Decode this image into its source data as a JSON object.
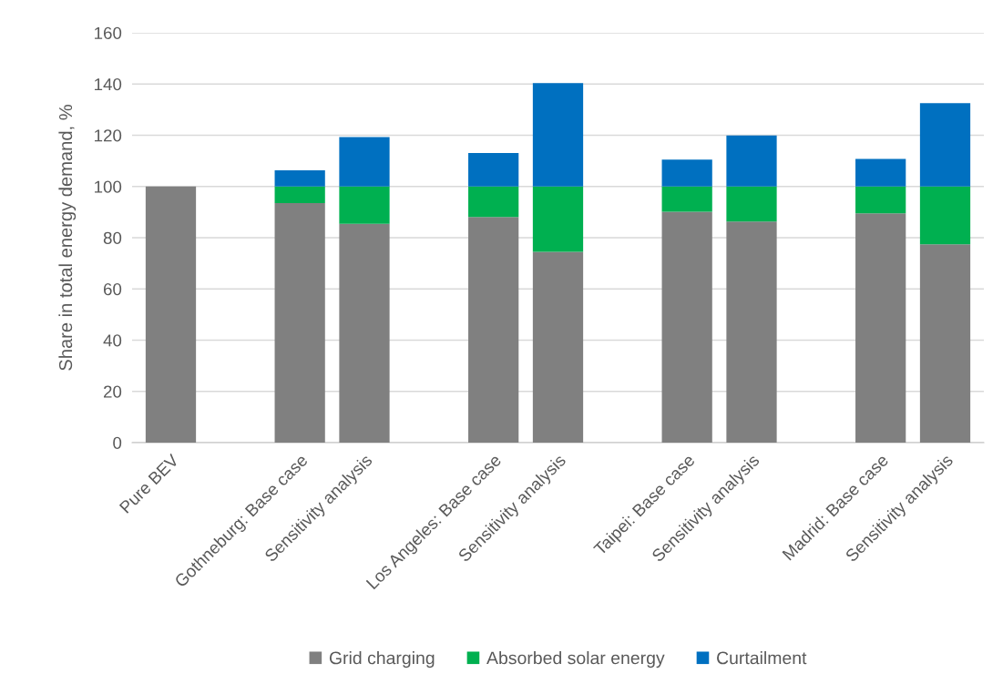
{
  "chart_data": {
    "type": "bar",
    "stacked": true,
    "ylabel": "Share in total energy demand, %",
    "categories": [
      "Pure BEV",
      null,
      "Gothneburg: Base case",
      "Sensitivity analysis",
      null,
      "Los Angeles: Base case",
      "Sensitivity analysis",
      null,
      "Taipei: Base case",
      "Sensitivity analysis",
      null,
      "Madrid: Base case",
      "Sensitivity analysis"
    ],
    "series": [
      {
        "name": "Grid charging",
        "color": "#808080",
        "values": [
          100,
          null,
          93.5,
          85.4,
          null,
          88.1,
          74.5,
          null,
          90.1,
          86.3,
          null,
          89.5,
          77.4
        ]
      },
      {
        "name": "Absorbed solar energy",
        "color": "#00b050",
        "values": [
          null,
          null,
          6.5,
          14.6,
          null,
          11.9,
          25.5,
          null,
          9.9,
          13.7,
          null,
          10.5,
          22.6
        ]
      },
      {
        "name": "Curtailment",
        "color": "#0070c0",
        "values": [
          null,
          null,
          6.3,
          19.3,
          null,
          13.1,
          40.4,
          null,
          10.5,
          19.9,
          null,
          10.8,
          32.5
        ]
      }
    ],
    "ylim": [
      0,
      160
    ],
    "yticks": [
      0,
      20,
      40,
      60,
      80,
      100,
      120,
      140,
      160
    ],
    "grid": "y",
    "legend": "bottom"
  }
}
